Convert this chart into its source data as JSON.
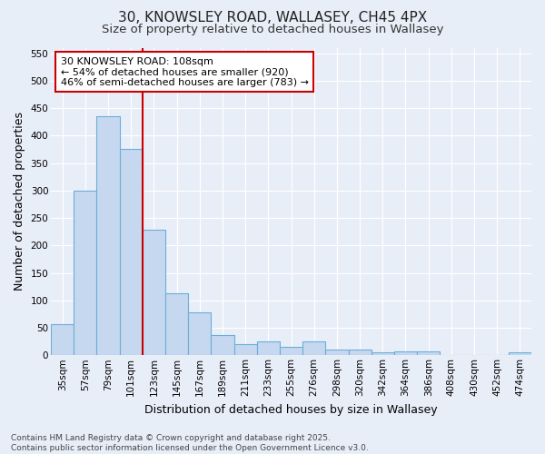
{
  "title1": "30, KNOWSLEY ROAD, WALLASEY, CH45 4PX",
  "title2": "Size of property relative to detached houses in Wallasey",
  "xlabel": "Distribution of detached houses by size in Wallasey",
  "ylabel": "Number of detached properties",
  "categories": [
    "35sqm",
    "57sqm",
    "79sqm",
    "101sqm",
    "123sqm",
    "145sqm",
    "167sqm",
    "189sqm",
    "211sqm",
    "233sqm",
    "255sqm",
    "276sqm",
    "298sqm",
    "320sqm",
    "342sqm",
    "364sqm",
    "386sqm",
    "408sqm",
    "430sqm",
    "452sqm",
    "474sqm"
  ],
  "values": [
    57,
    300,
    435,
    375,
    228,
    113,
    78,
    37,
    20,
    25,
    15,
    25,
    10,
    10,
    5,
    7,
    7,
    0,
    0,
    0,
    5
  ],
  "bar_color": "#c5d8f0",
  "bar_edge_color": "#6baed6",
  "vline_x_idx": 3,
  "vline_color": "#cc0000",
  "annotation_text": "30 KNOWSLEY ROAD: 108sqm\n← 54% of detached houses are smaller (920)\n46% of semi-detached houses are larger (783) →",
  "annotation_box_color": "#ffffff",
  "annotation_box_edge": "#cc0000",
  "ylim": [
    0,
    560
  ],
  "yticks": [
    0,
    50,
    100,
    150,
    200,
    250,
    300,
    350,
    400,
    450,
    500,
    550
  ],
  "background_color": "#e8eef8",
  "plot_bg_color": "#e8eef8",
  "grid_color": "#ffffff",
  "footnote": "Contains HM Land Registry data © Crown copyright and database right 2025.\nContains public sector information licensed under the Open Government Licence v3.0.",
  "title_fontsize": 11,
  "subtitle_fontsize": 9.5,
  "axis_label_fontsize": 9,
  "tick_fontsize": 7.5,
  "annotation_fontsize": 8,
  "footnote_fontsize": 6.5
}
